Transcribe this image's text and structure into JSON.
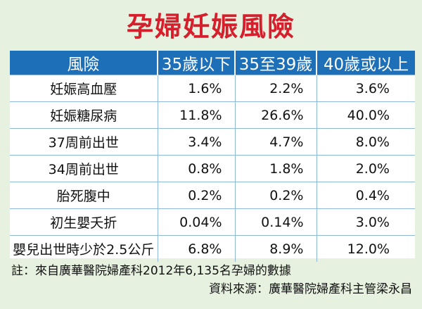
{
  "title": "孕婦妊娠風險",
  "note": "註：來自廣華醫院婦產科2012年6,135名孕婦的數據",
  "source": "資料來源：廣華醫院婦產科主管梁永昌",
  "chart_data": {
    "type": "table",
    "title": "孕婦妊娠風險",
    "columns": [
      "風險",
      "35歲以下",
      "35至39歲",
      "40歲或以上"
    ],
    "rows": [
      {
        "label": "妊娠高血壓",
        "values": [
          "1.6%",
          "2.2%",
          "3.6%"
        ]
      },
      {
        "label": "妊娠糖尿病",
        "values": [
          "11.8%",
          "26.6%",
          "40.0%"
        ]
      },
      {
        "label": "37周前出世",
        "values": [
          "3.4%",
          "4.7%",
          "8.0%"
        ]
      },
      {
        "label": "34周前出世",
        "values": [
          "0.8%",
          "1.8%",
          "2.0%"
        ]
      },
      {
        "label": "胎死腹中",
        "values": [
          "0.2%",
          "0.2%",
          "0.4%"
        ]
      },
      {
        "label": "初生嬰夭折",
        "values": [
          "0.04%",
          "0.14%",
          "3.0%"
        ]
      },
      {
        "label": "嬰兒出世時少於2.5公斤",
        "values": [
          "6.8%",
          "8.9%",
          "12.0%"
        ]
      }
    ]
  },
  "colors": {
    "background": "#e6f2df",
    "title": "#d61f2c",
    "header": "#1d6fb7",
    "grid": "#8db8df"
  }
}
